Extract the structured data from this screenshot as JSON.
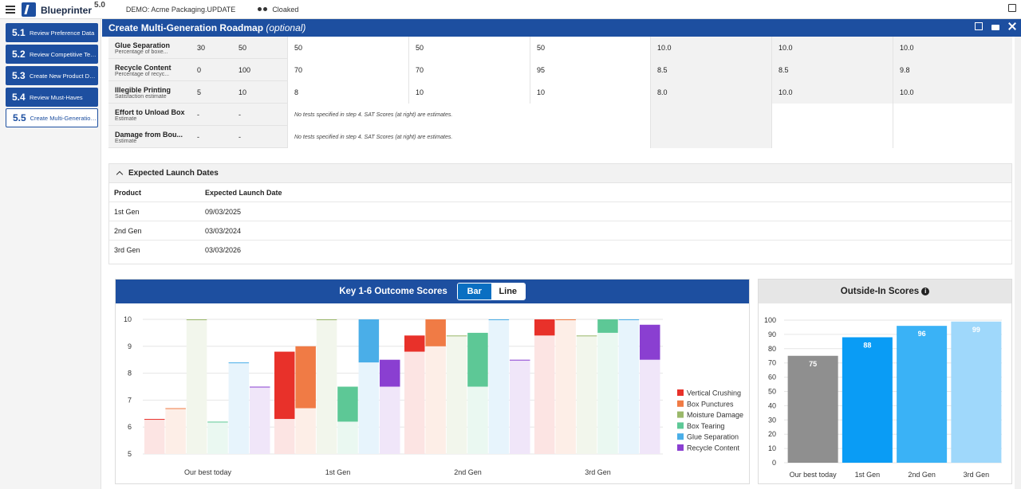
{
  "app": {
    "brand": "Blueprinter",
    "version": "5.0",
    "demo": "DEMO: Acme Packaging.UPDATE",
    "cloaked": "Cloaked"
  },
  "sidebar": {
    "steps": [
      {
        "num": "5.1",
        "label": "Review Preference Data"
      },
      {
        "num": "5.2",
        "label": "Review Competitive Test ..."
      },
      {
        "num": "5.3",
        "label": "Create New Product Des..."
      },
      {
        "num": "5.4",
        "label": "Review Must-Haves"
      },
      {
        "num": "5.5",
        "label": "Create Multi-Generation ..."
      }
    ]
  },
  "panel": {
    "title": "Create Multi-Generation Roadmap",
    "title_optional": "(optional)"
  },
  "features": [
    {
      "name": "Glue Separation",
      "sub": "Percentage of boxe...",
      "low": "30",
      "high": "50",
      "v1": "50",
      "v2": "50",
      "v3": "50",
      "s1": "10.0",
      "s2": "10.0",
      "s3": "10.0"
    },
    {
      "name": "Recycle Content",
      "sub": "Percentage of recyc...",
      "low": "0",
      "high": "100",
      "v1": "70",
      "v2": "70",
      "v3": "95",
      "s1": "8.5",
      "s2": "8.5",
      "s3": "9.8"
    },
    {
      "name": "Illegible Printing",
      "sub": "Satisfaction estimate",
      "low": "5",
      "high": "10",
      "v1": "8",
      "v2": "10",
      "v3": "10",
      "s1": "8.0",
      "s2": "10.0",
      "s3": "10.0"
    },
    {
      "name": "Effort to Unload Box",
      "sub": "Estimate",
      "low": "-",
      "high": "-",
      "note": "No tests specified in step 4. SAT Scores (at right) are estimates."
    },
    {
      "name": "Damage from Bou...",
      "sub": "Estimate",
      "low": "-",
      "high": "-",
      "note": "No tests specified in step 4. SAT Scores (at right) are estimates."
    }
  ],
  "launch": {
    "heading": "Expected Launch Dates",
    "col_product": "Product",
    "col_date": "Expected Launch Date",
    "rows": [
      {
        "product": "1st Gen",
        "date": "09/03/2025"
      },
      {
        "product": "2nd Gen",
        "date": "03/03/2024"
      },
      {
        "product": "3rd Gen",
        "date": "03/03/2026"
      }
    ]
  },
  "outcome_panel": {
    "title": "Key 1-6 Outcome Scores",
    "toggle_bar": "Bar",
    "toggle_line": "Line"
  },
  "outside_panel": {
    "title": "Outside-In Scores"
  },
  "chart_data": [
    {
      "type": "bar",
      "title": "Key 1-6 Outcome Scores",
      "categories": [
        "Our best today",
        "1st Gen",
        "2nd Gen",
        "3rd Gen"
      ],
      "ylim": [
        5,
        10
      ],
      "yticks": [
        5,
        6,
        7,
        8,
        9,
        10
      ],
      "legend_position": "right",
      "series": [
        {
          "name": "Vertical Crushing",
          "color": "#e8312a",
          "base": [
            6.3,
            6.3,
            8.8,
            9.4
          ],
          "values": [
            6.3,
            8.8,
            9.4,
            10.0
          ]
        },
        {
          "name": "Box Punctures",
          "color": "#f07b45",
          "base": [
            6.7,
            6.7,
            9.0,
            10.0
          ],
          "values": [
            6.7,
            9.0,
            10.0,
            10.0
          ]
        },
        {
          "name": "Moisture Damage",
          "color": "#9ab86a",
          "base": [
            10.0,
            10.0,
            9.4,
            9.4
          ],
          "values": [
            10.0,
            10.0,
            9.4,
            9.4
          ]
        },
        {
          "name": "Box Tearing",
          "color": "#5dc896",
          "base": [
            6.2,
            6.2,
            7.5,
            9.5
          ],
          "values": [
            6.2,
            7.5,
            9.5,
            10.0
          ]
        },
        {
          "name": "Glue Separation",
          "color": "#4aaee8",
          "base": [
            8.4,
            8.4,
            10.0,
            10.0
          ],
          "values": [
            8.4,
            10.0,
            10.0,
            10.0
          ]
        },
        {
          "name": "Recycle Content",
          "color": "#8a3fd1",
          "base": [
            7.5,
            7.5,
            8.5,
            8.5
          ],
          "values": [
            7.5,
            8.5,
            8.5,
            9.8
          ]
        }
      ]
    },
    {
      "type": "bar",
      "title": "Outside-In Scores",
      "categories": [
        "Our best today",
        "1st Gen",
        "2nd Gen",
        "3rd Gen"
      ],
      "values": [
        75,
        88,
        96,
        99
      ],
      "colors": [
        "#8f8f8f",
        "#0a9cf5",
        "#3ab2f6",
        "#9fd8fb"
      ],
      "ylim": [
        0,
        100
      ],
      "yticks": [
        0,
        10,
        20,
        30,
        40,
        50,
        60,
        70,
        80,
        90,
        100
      ]
    }
  ]
}
